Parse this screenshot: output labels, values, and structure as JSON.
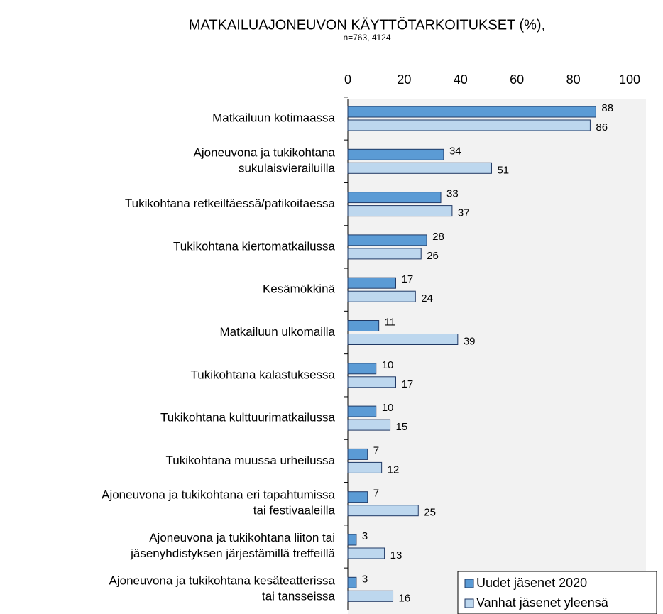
{
  "chart_data": {
    "type": "barh",
    "title": "MATKAILUAJONEUVON KÄYTTÖTARKOITUKSET (%),",
    "subtitle": "n=763, 4124",
    "categories": [
      "Matkailuun kotimaassa",
      "Ajoneuvona ja tukikohtana\nsukulaisvierailuilla",
      "Tukikohtana retkeiltäessä/patikoitaessa",
      "Tukikohtana kiertomatkailussa",
      "Kesämökkinä",
      "Matkailuun ulkomailla",
      "Tukikohtana kalastuksessa",
      "Tukikohtana kulttuurimatkailussa",
      "Tukikohtana muussa urheilussa",
      "Ajoneuvona ja tukikohtana eri tapahtumissa\ntai festivaaleilla",
      "Ajoneuvona ja tukikohtana liiton tai\njäsenyhdistyksen järjestämillä treffeillä",
      "Ajoneuvona ja tukikohtana kesäteatterissa\ntai tansseissa"
    ],
    "series": [
      {
        "name": "Uudet jäsenet 2020",
        "color": "#5b9bd5",
        "values": [
          88,
          34,
          33,
          28,
          17,
          11,
          10,
          10,
          7,
          7,
          3,
          3
        ]
      },
      {
        "name": "Vanhat jäsenet yleensä",
        "color": "#bdd7ee",
        "values": [
          86,
          51,
          37,
          26,
          24,
          39,
          17,
          15,
          12,
          25,
          13,
          16
        ]
      }
    ],
    "xlim": [
      0,
      100
    ],
    "xticks": [
      0,
      20,
      40,
      60,
      80,
      100
    ],
    "legend": "lower right"
  }
}
